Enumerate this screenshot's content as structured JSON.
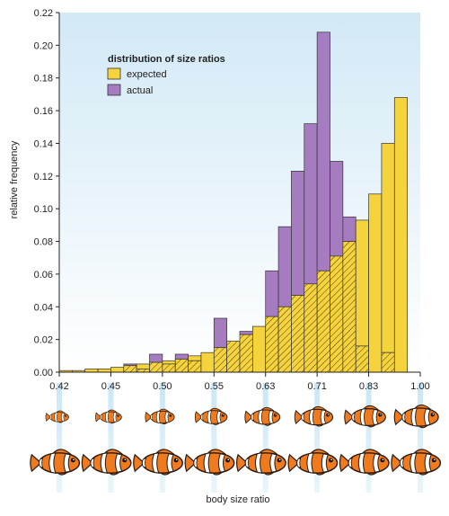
{
  "chart_data": {
    "type": "bar",
    "xlabel": "body size ratio",
    "ylabel": "relative frequency",
    "ylim": [
      0,
      0.22
    ],
    "y_ticks": [
      "0.00",
      "0.02",
      "0.04",
      "0.06",
      "0.08",
      "0.10",
      "0.12",
      "0.14",
      "0.16",
      "0.18",
      "0.20",
      "0.22"
    ],
    "x_ticks": [
      "0.42",
      "0.45",
      "0.50",
      "0.55",
      "0.63",
      "0.71",
      "0.83",
      "1.00"
    ],
    "legend": {
      "title": "distribution of size ratios",
      "placement": "top-left",
      "entries": [
        "expected",
        "actual"
      ]
    },
    "grid": false,
    "colors": {
      "expected": "#f5d33c",
      "actual": "#a67cc0",
      "overlap_hatch": "#3a2a10",
      "background_top": "#d4eaf6",
      "background_bottom": "#ffffff"
    },
    "bins": 28,
    "series": [
      {
        "name": "expected",
        "values": [
          0.001,
          0.001,
          0.002,
          0.002,
          0.003,
          0.004,
          0.005,
          0.006,
          0.007,
          0.008,
          0.01,
          0.012,
          0.015,
          0.019,
          0.023,
          0.028,
          0.034,
          0.04,
          0.047,
          0.054,
          0.062,
          0.071,
          0.08,
          0.093,
          0.109,
          0.14,
          0.168,
          0.0
        ]
      },
      {
        "name": "actual",
        "values": [
          0.0,
          0.0,
          0.0,
          0.0,
          0.0,
          0.005,
          0.002,
          0.011,
          0.005,
          0.011,
          0.007,
          0.0,
          0.033,
          0.019,
          0.025,
          0.0,
          0.062,
          0.089,
          0.123,
          0.152,
          0.208,
          0.129,
          0.095,
          0.016,
          0.0,
          0.012,
          0.0,
          0.0
        ]
      }
    ],
    "fish_rows": 2,
    "fish_columns": 8,
    "fish_icon": "clownfish-icon"
  }
}
